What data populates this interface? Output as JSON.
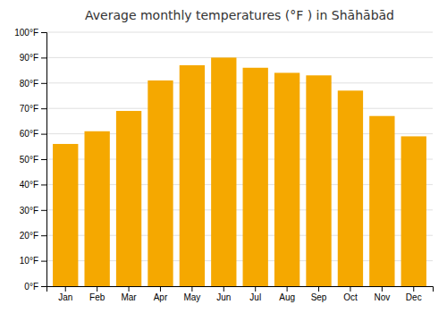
{
  "chart_data": {
    "type": "bar",
    "title": "Average monthly temperatures (°F ) in Shāhābād",
    "categories": [
      "Jan",
      "Feb",
      "Mar",
      "Apr",
      "May",
      "Jun",
      "Jul",
      "Aug",
      "Sep",
      "Oct",
      "Nov",
      "Dec"
    ],
    "values": [
      56,
      61,
      69,
      81,
      87,
      90,
      86,
      84,
      83,
      77,
      67,
      59
    ],
    "color": "#F5A800",
    "ylim": [
      0,
      100
    ],
    "yticks": [
      {
        "value": 0,
        "label": "0°F"
      },
      {
        "value": 10,
        "label": "10°F"
      },
      {
        "value": 20,
        "label": "20°F"
      },
      {
        "value": 30,
        "label": "30°F"
      },
      {
        "value": 40,
        "label": "40°F"
      },
      {
        "value": 50,
        "label": "50°F"
      },
      {
        "value": 60,
        "label": "60°F"
      },
      {
        "value": 70,
        "label": "70°F"
      },
      {
        "value": 80,
        "label": "80°F"
      },
      {
        "value": 90,
        "label": "90°F"
      },
      {
        "value": 100,
        "label": "100°F"
      }
    ],
    "grid": true
  }
}
